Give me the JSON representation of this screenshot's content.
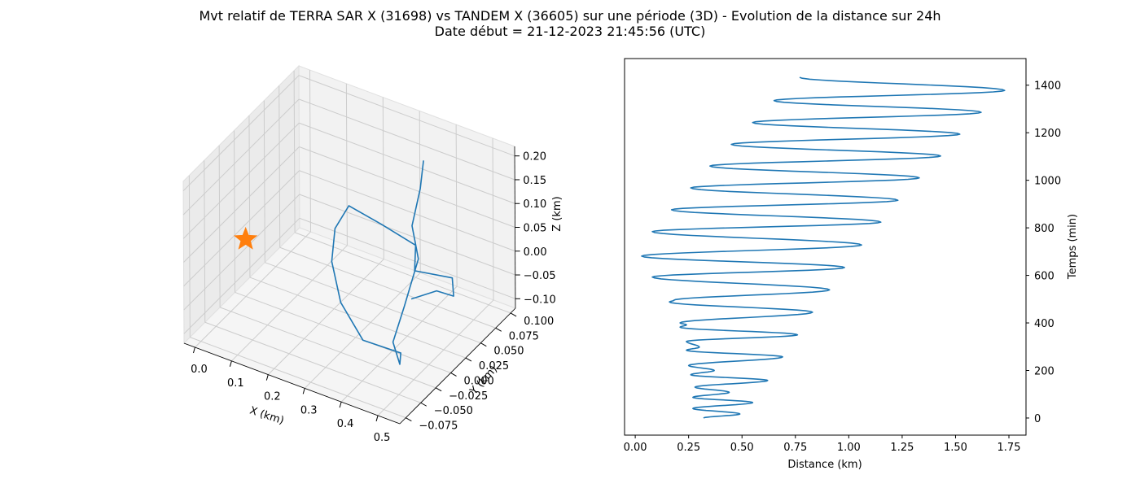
{
  "figure": {
    "title_line1": "Mvt relatif de TERRA SAR X (31698) vs TANDEM X (36605) sur une période (3D) - Evolution de la distance sur 24h",
    "title_line2": "Date début = 21-12-2023 21:45:56 (UTC)"
  },
  "colors": {
    "series": "#1f77b4",
    "marker": "#ff7f0e",
    "pane_side": "#ebebeb",
    "pane_back": "#f2f2f2",
    "pane_floor": "#f5f5f5",
    "grid": "#cccccc"
  },
  "chart_data": [
    {
      "type": "line3d",
      "xlabel": "X (km)",
      "ylabel": "Y (km)",
      "zlabel": "Z (km)",
      "xlim": [
        -0.03,
        0.56
      ],
      "ylim": [
        -0.085,
        0.108
      ],
      "zlim": [
        -0.12,
        0.22
      ],
      "x_ticks": [
        "0.0",
        "0.1",
        "0.2",
        "0.3",
        "0.4",
        "0.5"
      ],
      "y_ticks": [
        "−0.075",
        "−0.050",
        "−0.025",
        "0.000",
        "0.025",
        "0.050",
        "0.075",
        "0.100"
      ],
      "z_ticks": [
        "−0.10",
        "−0.05",
        "0.00",
        "0.05",
        "0.10",
        "0.15",
        "0.20"
      ],
      "grid": true,
      "marker": {
        "symbol": "star",
        "x": 0.0,
        "y": 0.0,
        "z": 0.0
      },
      "series": [
        {
          "x": [
            0.34,
            0.38,
            0.39,
            0.44,
            0.45,
            0.46,
            0.47,
            0.44,
            0.32,
            0.21,
            0.12,
            0.08,
            0.11,
            0.24,
            0.35,
            0.38,
            0.45,
            0.47,
            0.44,
            0.42
          ],
          "y": [
            0.09,
            0.06,
            0.04,
            0.02,
            -0.01,
            -0.035,
            -0.03,
            -0.01,
            0.0,
            0.03,
            0.07,
            0.1,
            0.105,
            0.08,
            0.07,
            0.05,
            0.07,
            0.06,
            0.05,
            0.02
          ],
          "z": [
            0.15,
            0.14,
            0.09,
            0.06,
            0.0,
            -0.04,
            -0.09,
            -0.1,
            -0.12,
            -0.11,
            -0.1,
            -0.08,
            -0.03,
            0.0,
            0.0,
            -0.02,
            -0.04,
            -0.06,
            -0.045,
            -0.03
          ]
        }
      ]
    },
    {
      "type": "line",
      "xlabel": "Distance (km)",
      "ylabel": "Temps (min)",
      "xlim": [
        -0.05,
        1.83
      ],
      "ylim": [
        -72,
        1512
      ],
      "x_ticks": [
        0.0,
        0.25,
        0.5,
        0.75,
        1.0,
        1.25,
        1.5,
        1.75
      ],
      "x_tick_labels": [
        "0.00",
        "0.25",
        "0.50",
        "0.75",
        "1.00",
        "1.25",
        "1.50",
        "1.75"
      ],
      "y_ticks": [
        0,
        200,
        400,
        600,
        800,
        1000,
        1200,
        1400
      ],
      "y_tick_labels": [
        "0",
        "200",
        "400",
        "600",
        "800",
        "1000",
        "1200",
        "1400"
      ],
      "y_axis_side": "right",
      "grid": false,
      "extrema": [
        [
          0.32,
          0
        ],
        [
          0.49,
          17
        ],
        [
          0.27,
          40
        ],
        [
          0.55,
          65
        ],
        [
          0.27,
          87
        ],
        [
          0.44,
          108
        ],
        [
          0.28,
          130
        ],
        [
          0.62,
          158
        ],
        [
          0.26,
          182
        ],
        [
          0.37,
          200
        ],
        [
          0.25,
          221
        ],
        [
          0.69,
          257
        ],
        [
          0.24,
          285
        ],
        [
          0.3,
          298
        ],
        [
          0.24,
          322
        ],
        [
          0.76,
          350
        ],
        [
          0.21,
          382
        ],
        [
          0.24,
          392
        ],
        [
          0.21,
          400
        ],
        [
          0.83,
          445
        ],
        [
          0.16,
          488
        ],
        [
          0.18,
          495
        ],
        [
          0.91,
          539
        ],
        [
          0.08,
          593
        ],
        [
          0.98,
          633
        ],
        [
          0.03,
          681
        ],
        [
          1.06,
          728
        ],
        [
          0.08,
          784
        ],
        [
          1.15,
          824
        ],
        [
          0.17,
          876
        ],
        [
          1.23,
          916
        ],
        [
          0.26,
          968
        ],
        [
          1.33,
          1010
        ],
        [
          0.35,
          1060
        ],
        [
          1.43,
          1102
        ],
        [
          0.45,
          1151
        ],
        [
          1.52,
          1194
        ],
        [
          0.55,
          1243
        ],
        [
          1.62,
          1286
        ],
        [
          0.65,
          1335
        ],
        [
          1.73,
          1378
        ],
        [
          0.77,
          1433
        ]
      ]
    }
  ]
}
